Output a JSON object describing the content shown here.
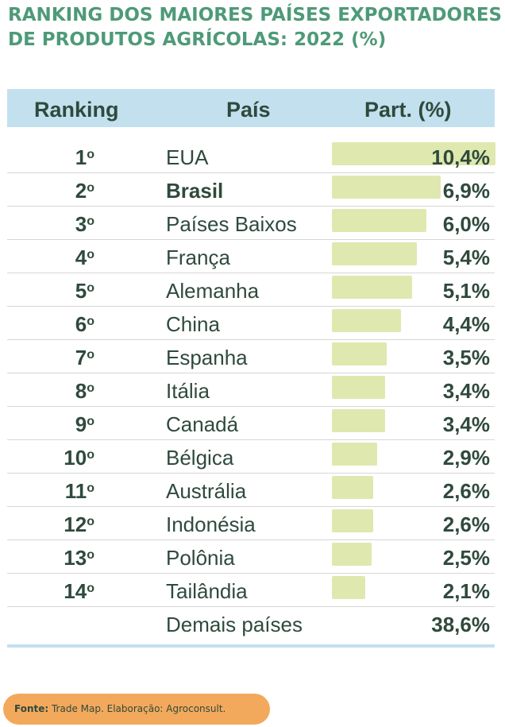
{
  "title": {
    "line1": "RANKING DOS MAIORES PAÍSES EXPORTADORES",
    "line2": "DE PRODUTOS AGRÍCOLAS: 2022 (%)"
  },
  "header": {
    "rank": "Ranking",
    "country": "País",
    "part": "Part. (%)"
  },
  "source": {
    "label": "Fonte:",
    "text": " Trade Map. Elaboração: Agroconsult."
  },
  "chart_data": {
    "type": "bar",
    "title": "RANKING DOS MAIORES PAÍSES EXPORTADORES DE PRODUTOS AGRÍCOLAS: 2022 (%)",
    "columns": [
      "Ranking",
      "País",
      "Part. (%)"
    ],
    "max_value": 10.4,
    "rows": [
      {
        "rank": "1",
        "sup": "o",
        "country": "EUA",
        "value": 10.4,
        "label": "10,4%",
        "bold": false
      },
      {
        "rank": "2",
        "sup": "o",
        "country": "Brasil",
        "value": 6.9,
        "label": "6,9%",
        "bold": true
      },
      {
        "rank": "3",
        "sup": "o",
        "country": "Países Baixos",
        "value": 6.0,
        "label": "6,0%",
        "bold": false
      },
      {
        "rank": "4",
        "sup": "o",
        "country": "França",
        "value": 5.4,
        "label": "5,4%",
        "bold": false
      },
      {
        "rank": "5",
        "sup": "o",
        "country": "Alemanha",
        "value": 5.1,
        "label": "5,1%",
        "bold": false
      },
      {
        "rank": "6",
        "sup": "o",
        "country": "China",
        "value": 4.4,
        "label": "4,4%",
        "bold": false
      },
      {
        "rank": "7",
        "sup": "o",
        "country": "Espanha",
        "value": 3.5,
        "label": "3,5%",
        "bold": false
      },
      {
        "rank": "8",
        "sup": "o",
        "country": "Itália",
        "value": 3.4,
        "label": "3,4%",
        "bold": false
      },
      {
        "rank": "9",
        "sup": "o",
        "country": "Canadá",
        "value": 3.4,
        "label": "3,4%",
        "bold": false
      },
      {
        "rank": "10",
        "sup": "o",
        "country": "Bélgica",
        "value": 2.9,
        "label": "2,9%",
        "bold": false
      },
      {
        "rank": "11",
        "sup": "o",
        "country": "Austrália",
        "value": 2.6,
        "label": "2,6%",
        "bold": false
      },
      {
        "rank": "12",
        "sup": "o",
        "country": "Indonésia",
        "value": 2.6,
        "label": "2,6%",
        "bold": false
      },
      {
        "rank": "13",
        "sup": "o",
        "country": "Polônia",
        "value": 2.5,
        "label": "2,5%",
        "bold": false
      },
      {
        "rank": "14",
        "sup": "o",
        "country": "Tailândia",
        "value": 2.1,
        "label": "2,1%",
        "bold": false
      },
      {
        "rank": "",
        "sup": "",
        "country": "Demais países",
        "value": 38.6,
        "label": "38,6%",
        "bold": false,
        "no_bar": true
      }
    ]
  },
  "colors": {
    "title": "#4e9a78",
    "header_bg": "#c3e0ef",
    "bar": "#dfe8ae",
    "text": "#2f4a3c",
    "source_bg": "#f3a95c"
  }
}
